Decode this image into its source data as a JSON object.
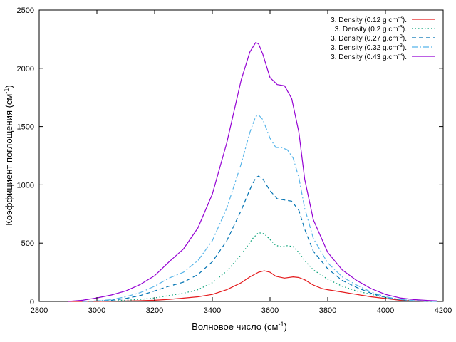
{
  "chart_data": {
    "type": "line",
    "title": "",
    "xlabel": "Волновое число (см",
    "xlabel_sup": "-1",
    "xlabel_tail": ")",
    "ylabel": "Коэффициент поглощения (см",
    "ylabel_sup": "-1",
    "ylabel_tail": ")",
    "xlim": [
      2800,
      4200
    ],
    "ylim": [
      0,
      2500
    ],
    "x_ticks": [
      2800,
      3000,
      3200,
      3400,
      3600,
      3800,
      4000,
      4200
    ],
    "y_ticks": [
      0,
      500,
      1000,
      1500,
      2000,
      2500
    ],
    "grid": false,
    "legend_position": "top-right",
    "series": [
      {
        "name": "3. Density (0.12 g cm",
        "name_sup": "-3",
        "name_tail": ").",
        "color": "#e41a1c",
        "dash": "solid",
        "points": [
          [
            2900,
            0
          ],
          [
            3000,
            0
          ],
          [
            3050,
            2
          ],
          [
            3100,
            4
          ],
          [
            3150,
            6
          ],
          [
            3200,
            10
          ],
          [
            3250,
            18
          ],
          [
            3300,
            28
          ],
          [
            3350,
            40
          ],
          [
            3400,
            60
          ],
          [
            3450,
            100
          ],
          [
            3500,
            160
          ],
          [
            3530,
            210
          ],
          [
            3560,
            250
          ],
          [
            3580,
            262
          ],
          [
            3600,
            250
          ],
          [
            3620,
            215
          ],
          [
            3650,
            200
          ],
          [
            3680,
            210
          ],
          [
            3700,
            205
          ],
          [
            3720,
            185
          ],
          [
            3750,
            140
          ],
          [
            3780,
            110
          ],
          [
            3800,
            100
          ],
          [
            3850,
            80
          ],
          [
            3900,
            60
          ],
          [
            3950,
            40
          ],
          [
            4000,
            25
          ],
          [
            4050,
            10
          ],
          [
            4100,
            4
          ],
          [
            4150,
            1
          ],
          [
            4180,
            0
          ]
        ]
      },
      {
        "name": "3. Density (0.2 g.cm",
        "name_sup": "-3",
        "name_tail": ").",
        "color": "#009e73",
        "dash": "dotted",
        "points": [
          [
            2950,
            0
          ],
          [
            3000,
            2
          ],
          [
            3050,
            5
          ],
          [
            3100,
            10
          ],
          [
            3150,
            18
          ],
          [
            3200,
            30
          ],
          [
            3250,
            50
          ],
          [
            3300,
            70
          ],
          [
            3350,
            100
          ],
          [
            3400,
            160
          ],
          [
            3450,
            260
          ],
          [
            3500,
            400
          ],
          [
            3540,
            540
          ],
          [
            3560,
            590
          ],
          [
            3580,
            580
          ],
          [
            3600,
            530
          ],
          [
            3620,
            480
          ],
          [
            3640,
            470
          ],
          [
            3660,
            478
          ],
          [
            3680,
            470
          ],
          [
            3700,
            420
          ],
          [
            3720,
            350
          ],
          [
            3750,
            270
          ],
          [
            3800,
            190
          ],
          [
            3850,
            130
          ],
          [
            3900,
            90
          ],
          [
            3950,
            60
          ],
          [
            4000,
            35
          ],
          [
            4050,
            15
          ],
          [
            4100,
            5
          ],
          [
            4150,
            1
          ],
          [
            4180,
            0
          ]
        ]
      },
      {
        "name": "3. Density (0.27 g.cm",
        "name_sup": "-3",
        "name_tail": ").",
        "color": "#0072b2",
        "dash": "dashed",
        "points": [
          [
            2950,
            0
          ],
          [
            3000,
            3
          ],
          [
            3050,
            10
          ],
          [
            3100,
            25
          ],
          [
            3150,
            50
          ],
          [
            3200,
            90
          ],
          [
            3250,
            130
          ],
          [
            3300,
            165
          ],
          [
            3350,
            230
          ],
          [
            3400,
            340
          ],
          [
            3450,
            520
          ],
          [
            3500,
            780
          ],
          [
            3530,
            960
          ],
          [
            3550,
            1060
          ],
          [
            3560,
            1075
          ],
          [
            3575,
            1050
          ],
          [
            3600,
            950
          ],
          [
            3625,
            880
          ],
          [
            3650,
            870
          ],
          [
            3675,
            860
          ],
          [
            3700,
            780
          ],
          [
            3720,
            620
          ],
          [
            3750,
            430
          ],
          [
            3800,
            280
          ],
          [
            3850,
            180
          ],
          [
            3900,
            120
          ],
          [
            3950,
            70
          ],
          [
            4000,
            35
          ],
          [
            4050,
            15
          ],
          [
            4100,
            5
          ],
          [
            4150,
            1
          ],
          [
            4180,
            0
          ]
        ]
      },
      {
        "name": "3. Density (0.32 g.cm",
        "name_sup": "-3",
        "name_tail": ").",
        "color": "#56b4e9",
        "dash": "dashdot",
        "points": [
          [
            2950,
            0
          ],
          [
            3000,
            5
          ],
          [
            3050,
            15
          ],
          [
            3100,
            40
          ],
          [
            3150,
            75
          ],
          [
            3200,
            130
          ],
          [
            3250,
            200
          ],
          [
            3300,
            250
          ],
          [
            3350,
            350
          ],
          [
            3400,
            520
          ],
          [
            3450,
            800
          ],
          [
            3500,
            1180
          ],
          [
            3530,
            1450
          ],
          [
            3550,
            1585
          ],
          [
            3560,
            1600
          ],
          [
            3575,
            1560
          ],
          [
            3600,
            1400
          ],
          [
            3620,
            1320
          ],
          [
            3640,
            1320
          ],
          [
            3660,
            1300
          ],
          [
            3680,
            1230
          ],
          [
            3700,
            1060
          ],
          [
            3720,
            800
          ],
          [
            3750,
            540
          ],
          [
            3800,
            330
          ],
          [
            3850,
            210
          ],
          [
            3900,
            140
          ],
          [
            3950,
            80
          ],
          [
            4000,
            40
          ],
          [
            4050,
            17
          ],
          [
            4100,
            6
          ],
          [
            4150,
            1
          ],
          [
            4180,
            0
          ]
        ]
      },
      {
        "name": "3. Density (0.43 g.cm",
        "name_sup": "-3",
        "name_tail": ").",
        "color": "#9400d3",
        "dash": "solid",
        "points": [
          [
            2900,
            0
          ],
          [
            2950,
            10
          ],
          [
            3000,
            30
          ],
          [
            3050,
            55
          ],
          [
            3100,
            90
          ],
          [
            3150,
            145
          ],
          [
            3200,
            220
          ],
          [
            3250,
            340
          ],
          [
            3300,
            450
          ],
          [
            3350,
            630
          ],
          [
            3400,
            920
          ],
          [
            3450,
            1360
          ],
          [
            3500,
            1900
          ],
          [
            3530,
            2140
          ],
          [
            3550,
            2220
          ],
          [
            3560,
            2210
          ],
          [
            3575,
            2120
          ],
          [
            3600,
            1920
          ],
          [
            3625,
            1860
          ],
          [
            3650,
            1850
          ],
          [
            3675,
            1740
          ],
          [
            3700,
            1450
          ],
          [
            3720,
            1050
          ],
          [
            3750,
            700
          ],
          [
            3800,
            420
          ],
          [
            3850,
            270
          ],
          [
            3900,
            180
          ],
          [
            3950,
            110
          ],
          [
            4000,
            60
          ],
          [
            4050,
            30
          ],
          [
            4100,
            15
          ],
          [
            4150,
            8
          ],
          [
            4180,
            5
          ]
        ]
      }
    ]
  }
}
